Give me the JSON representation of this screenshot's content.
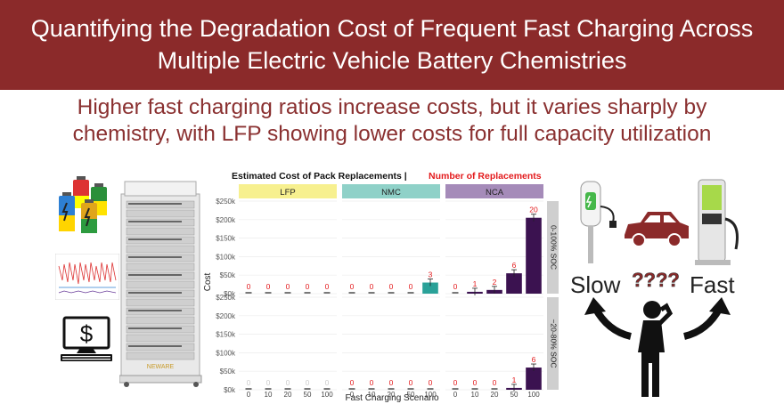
{
  "title": {
    "line1": "Quantifying the Degradation Cost of Frequent Fast Charging Across",
    "line2": "Multiple Electric Vehicle Battery Chemistries"
  },
  "subtitle": {
    "line1": "Higher fast charging ratios increase costs, but it varies sharply by",
    "line2": "chemistry, with LFP showing lower costs for full capacity utilization"
  },
  "right_graphic": {
    "slow": "Slow",
    "fast": "Fast",
    "question_marks": "????"
  },
  "tester_label": "NEWARE",
  "chart_data": {
    "type": "bar",
    "title_part1": "Estimated Cost of Pack Replacements |",
    "title_part2": "Number of Replacements",
    "xlabel": "Fast Charging Scenario",
    "ylabel": "Cost",
    "categories": [
      "0",
      "10",
      "20",
      "50",
      "100"
    ],
    "facet_columns": [
      "LFP",
      "NMC",
      "NCA"
    ],
    "facet_rows": [
      "0-100% SOC",
      "~20-80% SOC"
    ],
    "yticks": [
      "$0k",
      "$50k",
      "$100k",
      "$150k",
      "$200k",
      "$250k"
    ],
    "ylim": [
      0,
      250000
    ],
    "colors": {
      "LFP": "#f5e97a",
      "NMC": "#2aa198",
      "NCA": "#3b1250",
      "label": "#e31a1c"
    },
    "panels": [
      {
        "row": "0-100% SOC",
        "chemistry": "LFP",
        "values": [
          0,
          0,
          0,
          0,
          0
        ],
        "replacements": [
          "0",
          "0",
          "0",
          "0",
          "0"
        ]
      },
      {
        "row": "0-100% SOC",
        "chemistry": "NMC",
        "values": [
          0,
          0,
          0,
          0,
          30000
        ],
        "replacements": [
          "0",
          "0",
          "0",
          "0",
          "3"
        ]
      },
      {
        "row": "0-100% SOC",
        "chemistry": "NCA",
        "values": [
          0,
          5000,
          10000,
          55000,
          205000
        ],
        "replacements": [
          "0",
          "1",
          "2",
          "6",
          "20"
        ]
      },
      {
        "row": "~20-80% SOC",
        "chemistry": "LFP",
        "values": [
          0,
          0,
          0,
          0,
          0
        ],
        "replacements": [
          "",
          "",
          "",
          "",
          ""
        ]
      },
      {
        "row": "~20-80% SOC",
        "chemistry": "NMC",
        "values": [
          0,
          0,
          0,
          0,
          0
        ],
        "replacements": [
          "0",
          "0",
          "0",
          "0",
          "0"
        ]
      },
      {
        "row": "~20-80% SOC",
        "chemistry": "NCA",
        "values": [
          0,
          0,
          0,
          5000,
          60000
        ],
        "replacements": [
          "0",
          "0",
          "0",
          "1",
          "6"
        ]
      }
    ]
  }
}
